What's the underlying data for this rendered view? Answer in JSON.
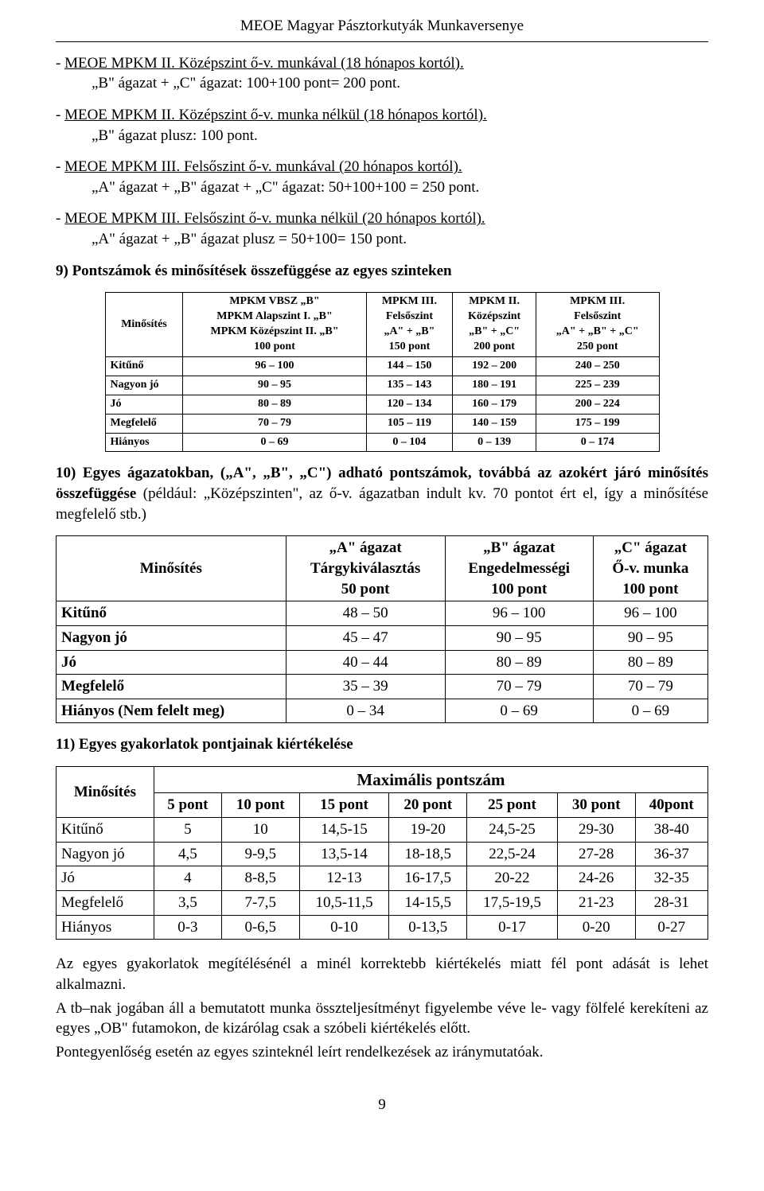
{
  "header": {
    "title": "MEOE Magyar Pásztorkutyák Munkaversenye"
  },
  "lines": {
    "l1a": "- ",
    "l1u": "MEOE MPKM II. Középszint ő-v. munkával (18 hónapos kortól).",
    "l1b": "„B\" ágazat + „C\" ágazat: 100+100 pont= 200 pont.",
    "l2a": "- ",
    "l2u": "MEOE MPKM II. Középszint ő-v. munka nélkül (18 hónapos kortól).",
    "l2b": "„B\" ágazat plusz: 100 pont.",
    "l3a": "- ",
    "l3u": "MEOE MPKM III. Felsőszint ő-v. munkával (20 hónapos kortól).",
    "l3b": "„A\" ágazat + „B\" ágazat + „C\" ágazat: 50+100+100 = 250 pont.",
    "l4a": "- ",
    "l4u": "MEOE MPKM III. Felsőszint ő-v. munka nélkül (20 hónapos kortól).",
    "l4b": "„A\" ágazat + „B\" ágazat plusz = 50+100= 150 pont."
  },
  "section9": "9) Pontszámok és minősítések összefüggése az egyes szinteken",
  "table1": {
    "h0": "Minősítés",
    "h1": "MPKM VBSZ „B\"\nMPKM Alapszint I. „B\"\nMPKM Középszint II. „B\"\n100 pont",
    "h2": "MPKM III.\nFelsőszint\n„A\" + „B\"\n150 pont",
    "h3": "MPKM II.\nKözépszint\n„B\" + „C\"\n200 pont",
    "h4": "MPKM III.\nFelsőszint\n„A\" + „B\" + „C\"\n250 pont",
    "rows": [
      {
        "c0": "Kitűnő",
        "c1": "96 – 100",
        "c2": "144 – 150",
        "c3": "192 – 200",
        "c4": "240 – 250"
      },
      {
        "c0": "Nagyon jó",
        "c1": "90 – 95",
        "c2": "135 – 143",
        "c3": "180 – 191",
        "c4": "225 – 239"
      },
      {
        "c0": "Jó",
        "c1": "80 – 89",
        "c2": "120 – 134",
        "c3": "160 – 179",
        "c4": "200 – 224"
      },
      {
        "c0": "Megfelelő",
        "c1": "70 – 79",
        "c2": "105 – 119",
        "c3": "140 – 159",
        "c4": "175 – 199"
      },
      {
        "c0": "Hiányos",
        "c1": "0 – 69",
        "c2": "0 – 104",
        "c3": "0 – 139",
        "c4": "0 – 174"
      }
    ]
  },
  "section10": {
    "bold": "10) Egyes ágazatokban, („A\", „B\", „C\") adható pontszámok, továbbá az azokért járó minősítés összefüggése",
    "rest": " (például: „Középszinten\", az ő-v. ágazatban indult kv. 70 pontot ért el, így a minősítése megfelelő stb.)"
  },
  "table2": {
    "h0": "Minősítés",
    "h1": "„A\" ágazat\nTárgykiválasztás\n50 pont",
    "h2": "„B\" ágazat\nEngedelmességi\n100 pont",
    "h3": "„C\" ágazat\nŐ-v. munka\n100 pont",
    "rows": [
      {
        "c0": "Kitűnő",
        "c1": "48 – 50",
        "c2": "96 – 100",
        "c3": "96 – 100"
      },
      {
        "c0": "Nagyon jó",
        "c1": "45 – 47",
        "c2": "90 – 95",
        "c3": "90 – 95"
      },
      {
        "c0": "Jó",
        "c1": "40 – 44",
        "c2": "80 – 89",
        "c3": "80 – 89"
      },
      {
        "c0": "Megfelelő",
        "c1": "35 – 39",
        "c2": "70 – 79",
        "c3": "70 – 79"
      },
      {
        "c0": "Hiányos (Nem felelt meg)",
        "c1": "0 – 34",
        "c2": "0 – 69",
        "c3": "0 – 69"
      }
    ]
  },
  "section11": "11) Egyes gyakorlatok pontjainak kiértékelése",
  "table3": {
    "h0": "Minősítés",
    "max": "Maximális pontszám",
    "cols": [
      "5 pont",
      "10 pont",
      "15 pont",
      "20 pont",
      "25 pont",
      "30 pont",
      "40pont"
    ],
    "rows": [
      {
        "c0": "Kitűnő",
        "c": [
          "5",
          "10",
          "14,5-15",
          "19-20",
          "24,5-25",
          "29-30",
          "38-40"
        ]
      },
      {
        "c0": "Nagyon jó",
        "c": [
          "4,5",
          "9-9,5",
          "13,5-14",
          "18-18,5",
          "22,5-24",
          "27-28",
          "36-37"
        ]
      },
      {
        "c0": "Jó",
        "c": [
          "4",
          "8-8,5",
          "12-13",
          "16-17,5",
          "20-22",
          "24-26",
          "32-35"
        ]
      },
      {
        "c0": "Megfelelő",
        "c": [
          "3,5",
          "7-7,5",
          "10,5-11,5",
          "14-15,5",
          "17,5-19,5",
          "21-23",
          "28-31"
        ]
      },
      {
        "c0": "Hiányos",
        "c": [
          "0-3",
          "0-6,5",
          "0-10",
          "0-13,5",
          "0-17",
          "0-20",
          "0-27"
        ]
      }
    ]
  },
  "footerParas": {
    "p1": "Az egyes gyakorlatok megítélésénél a minél korrektebb kiértékelés miatt fél pont adását is lehet alkalmazni.",
    "p2": "A tb–nak jogában áll a bemutatott munka összteljesítményt figyelembe véve le- vagy fölfelé kerekíteni az egyes „OB\" futamokon, de kizárólag csak a szóbeli kiértékelés előtt.",
    "p3": "Pontegyenlőség esetén az egyes szinteknél leírt rendelkezések az iránymutatóak."
  },
  "pageNumber": "9"
}
